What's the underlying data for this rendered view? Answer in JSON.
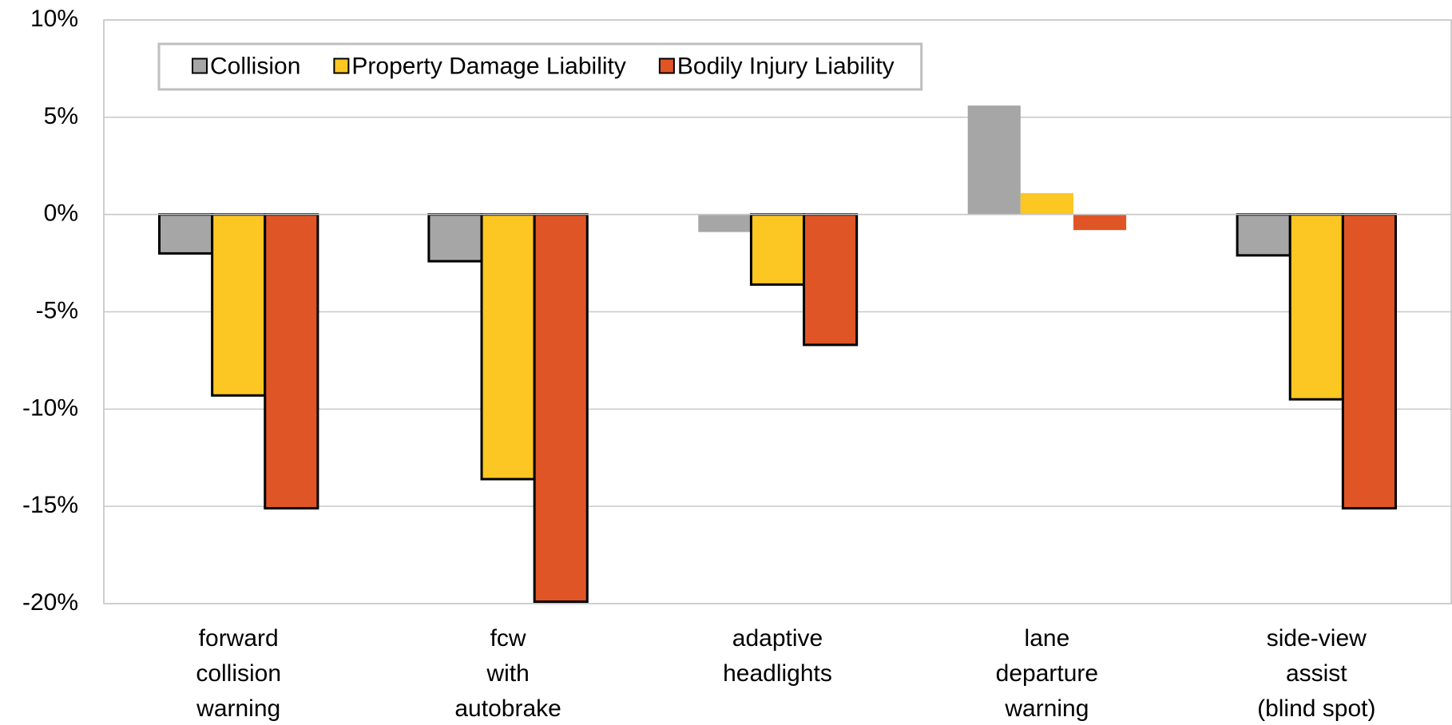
{
  "chart_data": {
    "type": "bar",
    "categories": [
      [
        "forward",
        "collision",
        "warning"
      ],
      [
        "fcw",
        "with",
        "autobrake"
      ],
      [
        "adaptive",
        "headlights"
      ],
      [
        "lane",
        "departure",
        "warning"
      ],
      [
        "side-view",
        "assist",
        "(blind spot)"
      ]
    ],
    "series": [
      {
        "name": "Collision",
        "color": "#a6a6a6",
        "values": [
          -2.0,
          -2.4,
          -0.9,
          5.6,
          -2.1
        ],
        "edgecolors": [
          "#000000",
          "#000000",
          null,
          null,
          "#000000"
        ]
      },
      {
        "name": "Property Damage Liability",
        "color": "#fcc623",
        "values": [
          -9.3,
          -13.6,
          -3.6,
          1.1,
          -9.5
        ],
        "edgecolors": [
          "#000000",
          "#000000",
          "#000000",
          null,
          "#000000"
        ]
      },
      {
        "name": "Bodily Injury Liability",
        "color": "#e05526",
        "values": [
          -15.1,
          -19.9,
          -6.7,
          -0.8,
          -15.1
        ],
        "edgecolors": [
          "#000000",
          "#000000",
          "#000000",
          null,
          "#000000"
        ]
      }
    ],
    "ylim": [
      -20,
      10
    ],
    "yticks": [
      {
        "value": -20,
        "label": "-20%"
      },
      {
        "value": -15,
        "label": "-15%"
      },
      {
        "value": -10,
        "label": "-10%"
      },
      {
        "value": -5,
        "label": "-5%"
      },
      {
        "value": 0,
        "label": "0%"
      },
      {
        "value": 5,
        "label": "5%"
      },
      {
        "value": 10,
        "label": "10%"
      }
    ],
    "grid": true,
    "legend": "top-left"
  }
}
